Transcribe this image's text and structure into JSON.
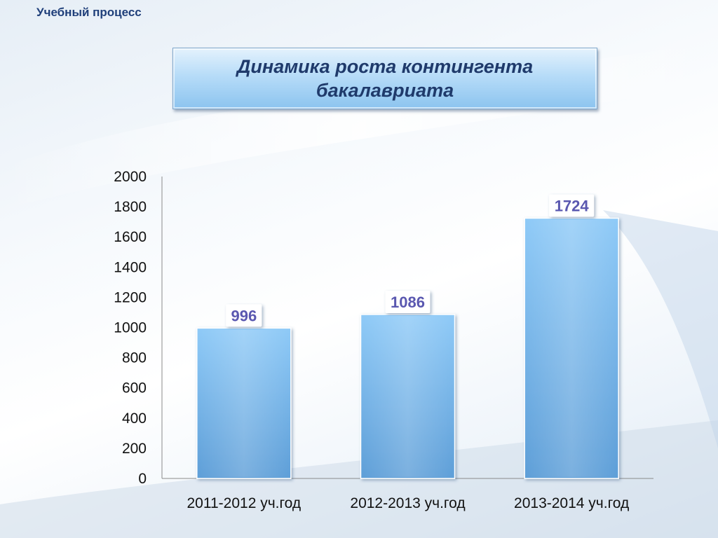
{
  "header": {
    "section_label": "Учебный процесс"
  },
  "slide": {
    "title": "Динамика роста контингента бакалавриата"
  },
  "colors": {
    "bar": "#7db9ee",
    "value_label": "#5a58b0",
    "title_text": "#1f3a6b"
  },
  "chart_data": {
    "type": "bar",
    "categories": [
      "2011-2012 уч.год",
      "2012-2013 уч.год",
      "2013-2014 уч.год"
    ],
    "values": [
      996,
      1086,
      1724
    ],
    "data_labels": [
      "996",
      "1086",
      "1724"
    ],
    "yticks": [
      "0",
      "200",
      "400",
      "600",
      "800",
      "1000",
      "1200",
      "1400",
      "1600",
      "1800",
      "2000"
    ],
    "ylim": [
      0,
      2000
    ],
    "title": "",
    "xlabel": "",
    "ylabel": "",
    "grid": false,
    "legend": "none"
  }
}
